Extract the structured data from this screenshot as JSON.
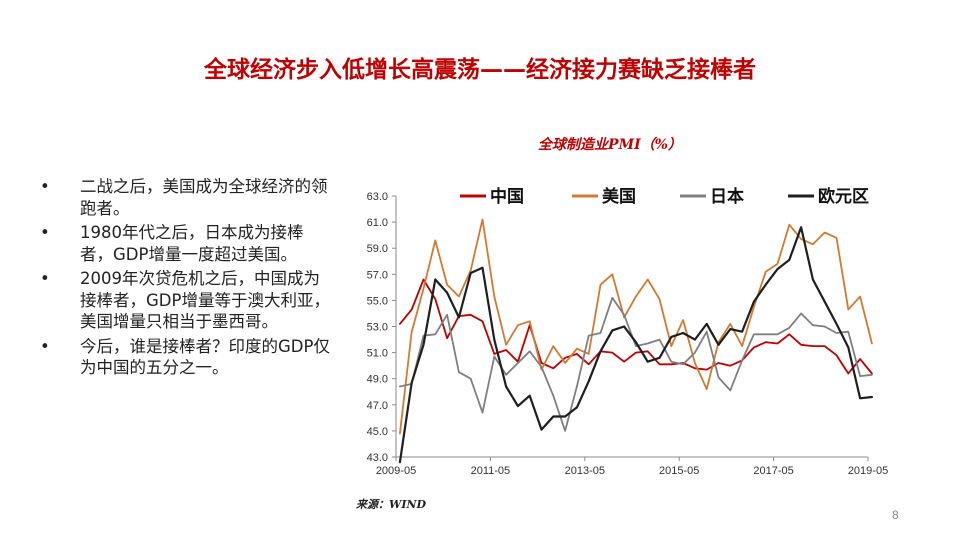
{
  "title": "全球经济步入低增长高震荡——经济接力赛缺乏接棒者",
  "bullets": [
    "二战之后，美国成为全球经济的领跑者。",
    "1980年代之后，日本成为接棒者，GDP增量一度超过美国。",
    "2009年次贷危机之后，中国成为接棒者，GDP增量等于澳大利亚，美国增量只相当于墨西哥。",
    "今后，谁是接棒者？印度的GDP仅为中国的五分之一。"
  ],
  "bullet_symbol": "•",
  "source": "来源：WIND",
  "page_number": "8",
  "chart_data": {
    "type": "line",
    "title": "全球制造业PMI（%）",
    "xlabel": "",
    "ylabel": "",
    "ylim": [
      43.0,
      63.0
    ],
    "yticks": [
      "43.0",
      "45.0",
      "47.0",
      "49.0",
      "51.0",
      "53.0",
      "55.0",
      "57.0",
      "59.0",
      "61.0",
      "63.0"
    ],
    "xticks": [
      "2009-05",
      "2011-05",
      "2013-05",
      "2015-05",
      "2017-05",
      "2019-05"
    ],
    "x_range": [
      "2009-05",
      "2019-05"
    ],
    "grid": false,
    "legend_position": "top",
    "x": [
      "2009-06",
      "2009-09",
      "2009-12",
      "2010-03",
      "2010-06",
      "2010-09",
      "2010-12",
      "2011-03",
      "2011-06",
      "2011-09",
      "2011-12",
      "2012-03",
      "2012-06",
      "2012-09",
      "2012-12",
      "2013-03",
      "2013-06",
      "2013-09",
      "2013-12",
      "2014-03",
      "2014-06",
      "2014-09",
      "2014-12",
      "2015-03",
      "2015-06",
      "2015-09",
      "2015-12",
      "2016-03",
      "2016-06",
      "2016-09",
      "2016-12",
      "2017-03",
      "2017-06",
      "2017-09",
      "2017-12",
      "2018-03",
      "2018-06",
      "2018-09",
      "2018-12",
      "2019-03",
      "2019-06"
    ],
    "series": [
      {
        "name": "中国",
        "color": "#c00000",
        "width": 1.8,
        "values": [
          53.2,
          54.3,
          56.6,
          55.1,
          52.1,
          53.8,
          53.9,
          53.4,
          50.9,
          51.2,
          50.3,
          53.1,
          50.2,
          49.8,
          50.6,
          50.9,
          50.1,
          51.1,
          51.0,
          50.3,
          51.0,
          51.1,
          50.1,
          50.1,
          50.2,
          49.8,
          49.7,
          50.2,
          50.0,
          50.4,
          51.4,
          51.8,
          51.7,
          52.4,
          51.6,
          51.5,
          51.5,
          50.8,
          49.4,
          50.5,
          49.4
        ]
      },
      {
        "name": "美国",
        "color": "#d27a33",
        "width": 1.8,
        "values": [
          44.8,
          52.6,
          55.9,
          59.6,
          56.2,
          55.3,
          57.3,
          61.2,
          55.3,
          51.6,
          53.1,
          53.4,
          49.7,
          51.5,
          50.2,
          51.3,
          50.9,
          56.2,
          57.0,
          53.7,
          55.3,
          56.6,
          55.1,
          51.5,
          53.5,
          50.2,
          48.2,
          51.8,
          53.2,
          51.5,
          54.5,
          57.2,
          57.8,
          60.8,
          59.7,
          59.3,
          60.2,
          59.8,
          54.3,
          55.3,
          51.7
        ]
      },
      {
        "name": "日本",
        "color": "#7f7f7f",
        "width": 1.8,
        "values": [
          48.4,
          48.6,
          52.3,
          52.4,
          53.9,
          49.5,
          49.0,
          46.4,
          50.7,
          49.3,
          50.2,
          51.1,
          49.9,
          47.7,
          45.0,
          48.4,
          52.3,
          52.5,
          55.2,
          53.9,
          51.5,
          51.7,
          52.0,
          50.3,
          50.1,
          51.0,
          52.6,
          49.1,
          48.1,
          50.4,
          52.4,
          52.4,
          52.4,
          52.9,
          54.0,
          53.1,
          53.0,
          52.5,
          52.6,
          49.2,
          49.3
        ]
      },
      {
        "name": "欧元区",
        "color": "#1f1f1f",
        "width": 2.2,
        "values": [
          42.6,
          48.7,
          51.6,
          56.6,
          55.6,
          53.7,
          57.1,
          57.5,
          52.0,
          48.4,
          46.9,
          47.7,
          45.1,
          46.1,
          46.1,
          46.8,
          48.8,
          51.1,
          52.7,
          53.0,
          51.8,
          50.3,
          50.6,
          52.2,
          52.5,
          52.0,
          53.2,
          51.6,
          52.8,
          52.6,
          54.9,
          56.2,
          57.4,
          58.1,
          60.6,
          56.6,
          54.9,
          53.2,
          51.4,
          47.5,
          47.6
        ]
      }
    ]
  }
}
